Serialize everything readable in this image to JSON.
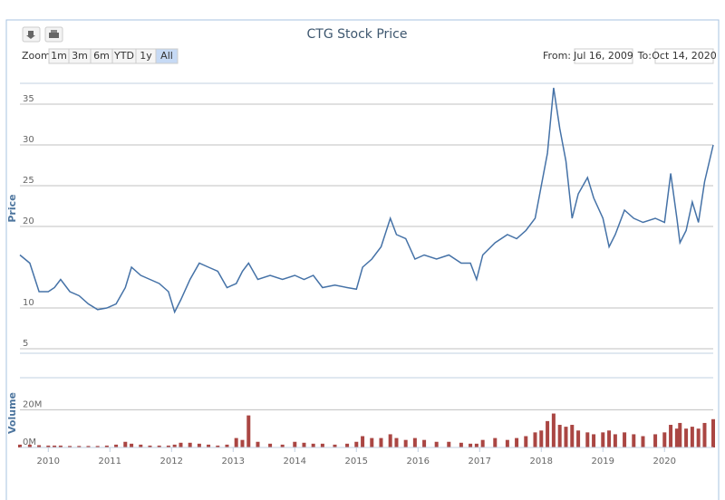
{
  "toolbar": {
    "zoom_label": "Zoom",
    "buttons": [
      "1m",
      "3m",
      "6m",
      "YTD",
      "1y",
      "All"
    ],
    "selected": 5,
    "from_label": "From:",
    "from": "Jul 16, 2009",
    "to_label": "To:",
    "to": "Oct 14, 2020"
  },
  "chart_data": [
    {
      "type": "line",
      "title": "CTG Stock Price",
      "ylabel": "Price",
      "color": "#4572a7",
      "x": [
        2009.54,
        2009.7,
        2009.85,
        2010.0,
        2010.1,
        2010.2,
        2010.35,
        2010.5,
        2010.65,
        2010.8,
        2010.95,
        2011.1,
        2011.25,
        2011.35,
        2011.5,
        2011.65,
        2011.8,
        2011.95,
        2012.05,
        2012.15,
        2012.3,
        2012.45,
        2012.6,
        2012.75,
        2012.9,
        2013.05,
        2013.15,
        2013.25,
        2013.4,
        2013.6,
        2013.8,
        2014.0,
        2014.15,
        2014.3,
        2014.45,
        2014.65,
        2014.85,
        2015.0,
        2015.1,
        2015.25,
        2015.4,
        2015.55,
        2015.65,
        2015.8,
        2015.95,
        2016.1,
        2016.3,
        2016.5,
        2016.7,
        2016.85,
        2016.95,
        2017.05,
        2017.25,
        2017.45,
        2017.6,
        2017.75,
        2017.9,
        2018.0,
        2018.1,
        2018.2,
        2018.3,
        2018.4,
        2018.5,
        2018.6,
        2018.75,
        2018.85,
        2019.0,
        2019.1,
        2019.2,
        2019.35,
        2019.5,
        2019.65,
        2019.85,
        2020.0,
        2020.1,
        2020.2,
        2020.25,
        2020.35,
        2020.45,
        2020.55,
        2020.65,
        2020.79
      ],
      "values": [
        16.5,
        15.5,
        12,
        12,
        12.5,
        13.5,
        12,
        11.5,
        10.5,
        9.8,
        10,
        10.5,
        12.5,
        15,
        14,
        13.5,
        13,
        12,
        9.5,
        11,
        13.5,
        15.5,
        15,
        14.5,
        12.5,
        13,
        14.5,
        15.5,
        13.5,
        14,
        13.5,
        14,
        13.5,
        14,
        12.5,
        12.8,
        12.5,
        12.3,
        15,
        16,
        17.5,
        21,
        19,
        18.5,
        16,
        16.5,
        16,
        16.5,
        15.5,
        15.5,
        13.5,
        16.5,
        18,
        19,
        18.5,
        19.5,
        21,
        25,
        29,
        37,
        32,
        28,
        21,
        24,
        26,
        23.5,
        21,
        17.5,
        19,
        22,
        21,
        20.5,
        21,
        20.5,
        26.5,
        21,
        18,
        19.5,
        23,
        20.5,
        25.5,
        30
      ],
      "xlim": [
        2009.54,
        2020.79
      ],
      "ylim": [
        4.44,
        37.56
      ],
      "yticks": [
        5,
        10,
        20,
        25,
        30,
        35
      ],
      "grid": true
    },
    {
      "type": "bar",
      "ylabel": "Volume",
      "color": "#aa4643",
      "x": [
        2009.54,
        2009.7,
        2009.85,
        2010.0,
        2010.1,
        2010.2,
        2010.35,
        2010.5,
        2010.65,
        2010.8,
        2010.95,
        2011.1,
        2011.25,
        2011.35,
        2011.5,
        2011.65,
        2011.8,
        2011.95,
        2012.05,
        2012.15,
        2012.3,
        2012.45,
        2012.6,
        2012.75,
        2012.9,
        2013.05,
        2013.15,
        2013.25,
        2013.4,
        2013.6,
        2013.8,
        2014.0,
        2014.15,
        2014.3,
        2014.45,
        2014.65,
        2014.85,
        2015.0,
        2015.1,
        2015.25,
        2015.4,
        2015.55,
        2015.65,
        2015.8,
        2015.95,
        2016.1,
        2016.3,
        2016.5,
        2016.7,
        2016.85,
        2016.95,
        2017.05,
        2017.25,
        2017.45,
        2017.6,
        2017.75,
        2017.9,
        2018.0,
        2018.1,
        2018.2,
        2018.3,
        2018.4,
        2018.5,
        2018.6,
        2018.75,
        2018.85,
        2019.0,
        2019.1,
        2019.2,
        2019.35,
        2019.5,
        2019.65,
        2019.85,
        2020.0,
        2020.1,
        2020.2,
        2020.25,
        2020.35,
        2020.45,
        2020.55,
        2020.65,
        2020.79
      ],
      "values": [
        1500000,
        1500000,
        1200000,
        1000000,
        1000000,
        1000000,
        800000,
        800000,
        800000,
        800000,
        1000000,
        1500000,
        3000000,
        2000000,
        1500000,
        1000000,
        1000000,
        1000000,
        1500000,
        2500000,
        2500000,
        2000000,
        1500000,
        1000000,
        1500000,
        5000000,
        4000000,
        17000000,
        3000000,
        2000000,
        1500000,
        3000000,
        2500000,
        2000000,
        2000000,
        1500000,
        2000000,
        3000000,
        6000000,
        5000000,
        5000000,
        7000000,
        5000000,
        4000000,
        5000000,
        4000000,
        3000000,
        3000000,
        2500000,
        2000000,
        2000000,
        4000000,
        5000000,
        4000000,
        5000000,
        6000000,
        8000000,
        9000000,
        14000000,
        18000000,
        12000000,
        11000000,
        12000000,
        9000000,
        8000000,
        7000000,
        8000000,
        9000000,
        7000000,
        8000000,
        7000000,
        6000000,
        7000000,
        8000000,
        12000000,
        10000000,
        13000000,
        10000000,
        11000000,
        10000000,
        13000000,
        15000000
      ],
      "xlim": [
        2009.54,
        2020.79
      ],
      "xticks": [
        2010,
        2011,
        2012,
        2013,
        2014,
        2015,
        2016,
        2017,
        2018,
        2019,
        2020
      ],
      "ylim": [
        0,
        37000000
      ],
      "yticks": [
        {
          "value": 0,
          "label": "0M"
        },
        {
          "value": 20000000,
          "label": "20M"
        }
      ],
      "grid": true
    }
  ]
}
